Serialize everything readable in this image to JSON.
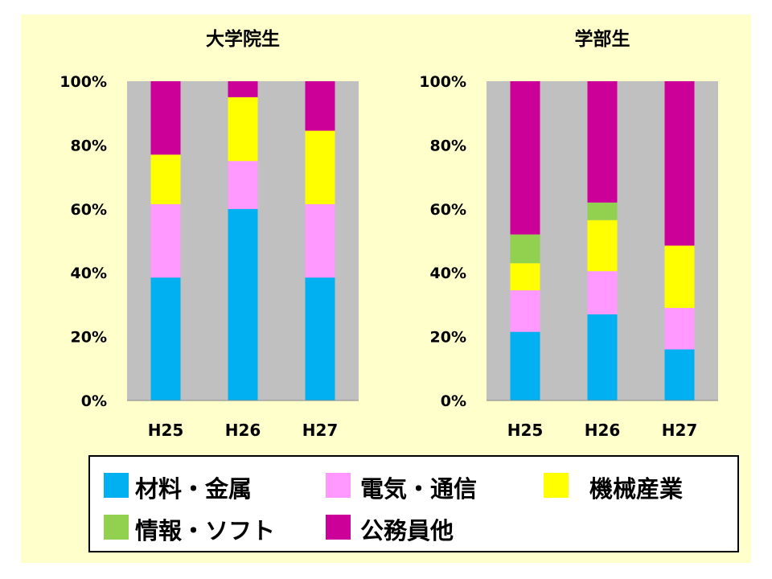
{
  "chart_data": [
    {
      "type": "bar",
      "stacked": true,
      "percent": true,
      "title": "大学院生",
      "categories": [
        "H25",
        "H26",
        "H27"
      ],
      "ylim": [
        0,
        100
      ],
      "yticks": [
        "0%",
        "20%",
        "40%",
        "60%",
        "80%",
        "100%"
      ],
      "grid": false,
      "series": [
        {
          "name": "材料・金属",
          "color": "#00b0f0",
          "values": [
            38.5,
            60,
            38.5
          ]
        },
        {
          "name": "電気・通信",
          "color": "#ff99ff",
          "values": [
            23,
            15,
            23
          ]
        },
        {
          "name": "機械産業",
          "color": "#ffff00",
          "values": [
            15.5,
            20,
            23
          ]
        },
        {
          "name": "情報・ソフト",
          "color": "#92d050",
          "values": [
            0,
            0,
            0
          ]
        },
        {
          "name": "公務員他",
          "color": "#cc0099",
          "values": [
            23,
            5,
            15.5
          ]
        }
      ]
    },
    {
      "type": "bar",
      "stacked": true,
      "percent": true,
      "title": "学部生",
      "categories": [
        "H25",
        "H26",
        "H27"
      ],
      "ylim": [
        0,
        100
      ],
      "yticks": [
        "0%",
        "20%",
        "40%",
        "60%",
        "80%",
        "100%"
      ],
      "grid": false,
      "series": [
        {
          "name": "材料・金属",
          "color": "#00b0f0",
          "values": [
            21.5,
            27,
            16
          ]
        },
        {
          "name": "電気・通信",
          "color": "#ff99ff",
          "values": [
            13,
            13.5,
            13
          ]
        },
        {
          "name": "機械産業",
          "color": "#ffff00",
          "values": [
            8.5,
            16,
            19.5
          ]
        },
        {
          "name": "情報・ソフト",
          "color": "#92d050",
          "values": [
            9,
            5.5,
            0
          ]
        },
        {
          "name": "公務員他",
          "color": "#cc0099",
          "values": [
            48,
            38,
            51.5
          ]
        }
      ]
    }
  ],
  "legend": {
    "items": [
      {
        "label": "材料・金属",
        "color": "#00b0f0"
      },
      {
        "label": "電気・通信",
        "color": "#ff99ff"
      },
      {
        "label": "機械産業",
        "color": "#ffff00"
      },
      {
        "label": "情報・ソフト",
        "color": "#92d050"
      },
      {
        "label": "公務員他",
        "color": "#cc0099"
      }
    ]
  },
  "colors": {
    "panel_background": "#ffffcc",
    "plot_background": "#c0c0c0"
  }
}
